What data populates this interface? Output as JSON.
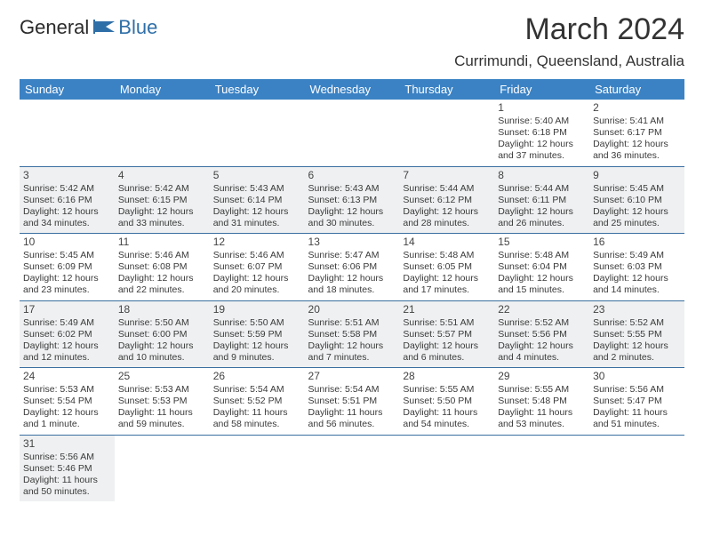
{
  "logo": {
    "part1": "General",
    "part2": "Blue"
  },
  "title": "March 2024",
  "location": "Currimundi, Queensland, Australia",
  "colors": {
    "header_bg": "#3b82c4",
    "header_fg": "#ffffff",
    "rule": "#3b6fa0",
    "shade": "#eef0f1",
    "brand_blue": "#2f6fa8"
  },
  "weekdays": [
    "Sunday",
    "Monday",
    "Tuesday",
    "Wednesday",
    "Thursday",
    "Friday",
    "Saturday"
  ],
  "weeks": [
    [
      null,
      null,
      null,
      null,
      null,
      {
        "n": "1",
        "sr": "Sunrise: 5:40 AM",
        "ss": "Sunset: 6:18 PM",
        "d1": "Daylight: 12 hours",
        "d2": "and 37 minutes."
      },
      {
        "n": "2",
        "sr": "Sunrise: 5:41 AM",
        "ss": "Sunset: 6:17 PM",
        "d1": "Daylight: 12 hours",
        "d2": "and 36 minutes."
      }
    ],
    [
      {
        "n": "3",
        "sr": "Sunrise: 5:42 AM",
        "ss": "Sunset: 6:16 PM",
        "d1": "Daylight: 12 hours",
        "d2": "and 34 minutes.",
        "shade": true
      },
      {
        "n": "4",
        "sr": "Sunrise: 5:42 AM",
        "ss": "Sunset: 6:15 PM",
        "d1": "Daylight: 12 hours",
        "d2": "and 33 minutes.",
        "shade": true
      },
      {
        "n": "5",
        "sr": "Sunrise: 5:43 AM",
        "ss": "Sunset: 6:14 PM",
        "d1": "Daylight: 12 hours",
        "d2": "and 31 minutes.",
        "shade": true
      },
      {
        "n": "6",
        "sr": "Sunrise: 5:43 AM",
        "ss": "Sunset: 6:13 PM",
        "d1": "Daylight: 12 hours",
        "d2": "and 30 minutes.",
        "shade": true
      },
      {
        "n": "7",
        "sr": "Sunrise: 5:44 AM",
        "ss": "Sunset: 6:12 PM",
        "d1": "Daylight: 12 hours",
        "d2": "and 28 minutes.",
        "shade": true
      },
      {
        "n": "8",
        "sr": "Sunrise: 5:44 AM",
        "ss": "Sunset: 6:11 PM",
        "d1": "Daylight: 12 hours",
        "d2": "and 26 minutes.",
        "shade": true
      },
      {
        "n": "9",
        "sr": "Sunrise: 5:45 AM",
        "ss": "Sunset: 6:10 PM",
        "d1": "Daylight: 12 hours",
        "d2": "and 25 minutes.",
        "shade": true
      }
    ],
    [
      {
        "n": "10",
        "sr": "Sunrise: 5:45 AM",
        "ss": "Sunset: 6:09 PM",
        "d1": "Daylight: 12 hours",
        "d2": "and 23 minutes."
      },
      {
        "n": "11",
        "sr": "Sunrise: 5:46 AM",
        "ss": "Sunset: 6:08 PM",
        "d1": "Daylight: 12 hours",
        "d2": "and 22 minutes."
      },
      {
        "n": "12",
        "sr": "Sunrise: 5:46 AM",
        "ss": "Sunset: 6:07 PM",
        "d1": "Daylight: 12 hours",
        "d2": "and 20 minutes."
      },
      {
        "n": "13",
        "sr": "Sunrise: 5:47 AM",
        "ss": "Sunset: 6:06 PM",
        "d1": "Daylight: 12 hours",
        "d2": "and 18 minutes."
      },
      {
        "n": "14",
        "sr": "Sunrise: 5:48 AM",
        "ss": "Sunset: 6:05 PM",
        "d1": "Daylight: 12 hours",
        "d2": "and 17 minutes."
      },
      {
        "n": "15",
        "sr": "Sunrise: 5:48 AM",
        "ss": "Sunset: 6:04 PM",
        "d1": "Daylight: 12 hours",
        "d2": "and 15 minutes."
      },
      {
        "n": "16",
        "sr": "Sunrise: 5:49 AM",
        "ss": "Sunset: 6:03 PM",
        "d1": "Daylight: 12 hours",
        "d2": "and 14 minutes."
      }
    ],
    [
      {
        "n": "17",
        "sr": "Sunrise: 5:49 AM",
        "ss": "Sunset: 6:02 PM",
        "d1": "Daylight: 12 hours",
        "d2": "and 12 minutes.",
        "shade": true
      },
      {
        "n": "18",
        "sr": "Sunrise: 5:50 AM",
        "ss": "Sunset: 6:00 PM",
        "d1": "Daylight: 12 hours",
        "d2": "and 10 minutes.",
        "shade": true
      },
      {
        "n": "19",
        "sr": "Sunrise: 5:50 AM",
        "ss": "Sunset: 5:59 PM",
        "d1": "Daylight: 12 hours",
        "d2": "and 9 minutes.",
        "shade": true
      },
      {
        "n": "20",
        "sr": "Sunrise: 5:51 AM",
        "ss": "Sunset: 5:58 PM",
        "d1": "Daylight: 12 hours",
        "d2": "and 7 minutes.",
        "shade": true
      },
      {
        "n": "21",
        "sr": "Sunrise: 5:51 AM",
        "ss": "Sunset: 5:57 PM",
        "d1": "Daylight: 12 hours",
        "d2": "and 6 minutes.",
        "shade": true
      },
      {
        "n": "22",
        "sr": "Sunrise: 5:52 AM",
        "ss": "Sunset: 5:56 PM",
        "d1": "Daylight: 12 hours",
        "d2": "and 4 minutes.",
        "shade": true
      },
      {
        "n": "23",
        "sr": "Sunrise: 5:52 AM",
        "ss": "Sunset: 5:55 PM",
        "d1": "Daylight: 12 hours",
        "d2": "and 2 minutes.",
        "shade": true
      }
    ],
    [
      {
        "n": "24",
        "sr": "Sunrise: 5:53 AM",
        "ss": "Sunset: 5:54 PM",
        "d1": "Daylight: 12 hours",
        "d2": "and 1 minute."
      },
      {
        "n": "25",
        "sr": "Sunrise: 5:53 AM",
        "ss": "Sunset: 5:53 PM",
        "d1": "Daylight: 11 hours",
        "d2": "and 59 minutes."
      },
      {
        "n": "26",
        "sr": "Sunrise: 5:54 AM",
        "ss": "Sunset: 5:52 PM",
        "d1": "Daylight: 11 hours",
        "d2": "and 58 minutes."
      },
      {
        "n": "27",
        "sr": "Sunrise: 5:54 AM",
        "ss": "Sunset: 5:51 PM",
        "d1": "Daylight: 11 hours",
        "d2": "and 56 minutes."
      },
      {
        "n": "28",
        "sr": "Sunrise: 5:55 AM",
        "ss": "Sunset: 5:50 PM",
        "d1": "Daylight: 11 hours",
        "d2": "and 54 minutes."
      },
      {
        "n": "29",
        "sr": "Sunrise: 5:55 AM",
        "ss": "Sunset: 5:48 PM",
        "d1": "Daylight: 11 hours",
        "d2": "and 53 minutes."
      },
      {
        "n": "30",
        "sr": "Sunrise: 5:56 AM",
        "ss": "Sunset: 5:47 PM",
        "d1": "Daylight: 11 hours",
        "d2": "and 51 minutes."
      }
    ],
    [
      {
        "n": "31",
        "sr": "Sunrise: 5:56 AM",
        "ss": "Sunset: 5:46 PM",
        "d1": "Daylight: 11 hours",
        "d2": "and 50 minutes.",
        "shade": true
      },
      null,
      null,
      null,
      null,
      null,
      null
    ]
  ]
}
